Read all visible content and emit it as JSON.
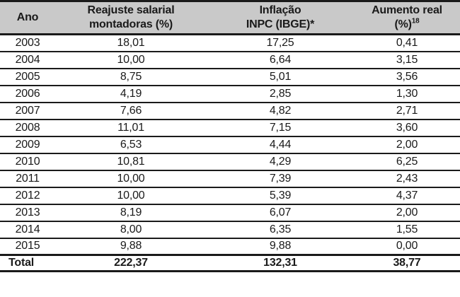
{
  "table": {
    "columns": [
      {
        "id": "ano",
        "line1": "Ano",
        "line2": ""
      },
      {
        "id": "reajuste",
        "line1": "Reajuste salarial",
        "line2": "montadoras (%)"
      },
      {
        "id": "inflacao",
        "line1": "Inflação",
        "line2": "INPC (IBGE)*"
      },
      {
        "id": "aumento",
        "line1": "Aumento real",
        "line2": "(%)",
        "sup": "18"
      }
    ],
    "rows": [
      {
        "year": "2003",
        "reajuste": "18,01",
        "inflacao": "17,25",
        "aumento": "0,41"
      },
      {
        "year": "2004",
        "reajuste": "10,00",
        "inflacao": "6,64",
        "aumento": "3,15"
      },
      {
        "year": "2005",
        "reajuste": "8,75",
        "inflacao": "5,01",
        "aumento": "3,56"
      },
      {
        "year": "2006",
        "reajuste": "4,19",
        "inflacao": "2,85",
        "aumento": "1,30"
      },
      {
        "year": "2007",
        "reajuste": "7,66",
        "inflacao": "4,82",
        "aumento": "2,71"
      },
      {
        "year": "2008",
        "reajuste": "11,01",
        "inflacao": "7,15",
        "aumento": "3,60"
      },
      {
        "year": "2009",
        "reajuste": "6,53",
        "inflacao": "4,44",
        "aumento": "2,00"
      },
      {
        "year": "2010",
        "reajuste": "10,81",
        "inflacao": "4,29",
        "aumento": "6,25"
      },
      {
        "year": "2011",
        "reajuste": "10,00",
        "inflacao": "7,39",
        "aumento": "2,43"
      },
      {
        "year": "2012",
        "reajuste": "10,00",
        "inflacao": "5,39",
        "aumento": "4,37"
      },
      {
        "year": "2013",
        "reajuste": "8,19",
        "inflacao": "6,07",
        "aumento": "2,00"
      },
      {
        "year": "2014",
        "reajuste": "8,00",
        "inflacao": "6,35",
        "aumento": "1,55"
      },
      {
        "year": "2015",
        "reajuste": "9,88",
        "inflacao": "9,88",
        "aumento": "0,00"
      }
    ],
    "total": {
      "label": "Total",
      "reajuste": "222,37",
      "inflacao": "132,31",
      "aumento": "38,77"
    }
  },
  "colors": {
    "header_bg": "#c9c9c9",
    "border": "#1a1a1a",
    "text": "#1a1a1a"
  },
  "chart_data": {
    "type": "table",
    "title": "Reajuste salarial montadoras vs Inflação INPC (IBGE) vs Aumento real",
    "columns": [
      "Ano",
      "Reajuste salarial montadoras (%)",
      "Inflação INPC (IBGE)*",
      "Aumento real (%)18"
    ],
    "rows": [
      [
        "2003",
        18.01,
        17.25,
        0.41
      ],
      [
        "2004",
        10.0,
        6.64,
        3.15
      ],
      [
        "2005",
        8.75,
        5.01,
        3.56
      ],
      [
        "2006",
        4.19,
        2.85,
        1.3
      ],
      [
        "2007",
        7.66,
        4.82,
        2.71
      ],
      [
        "2008",
        11.01,
        7.15,
        3.6
      ],
      [
        "2009",
        6.53,
        4.44,
        2.0
      ],
      [
        "2010",
        10.81,
        4.29,
        6.25
      ],
      [
        "2011",
        10.0,
        7.39,
        2.43
      ],
      [
        "2012",
        10.0,
        5.39,
        4.37
      ],
      [
        "2013",
        8.19,
        6.07,
        2.0
      ],
      [
        "2014",
        8.0,
        6.35,
        1.55
      ],
      [
        "2015",
        9.88,
        9.88,
        0.0
      ],
      [
        "Total",
        222.37,
        132.31,
        38.77
      ]
    ],
    "decimal_separator": ",",
    "notes": [
      "* footnote marker on INPC (IBGE)",
      "18 superscript footnote marker on Aumento real (%)"
    ]
  }
}
